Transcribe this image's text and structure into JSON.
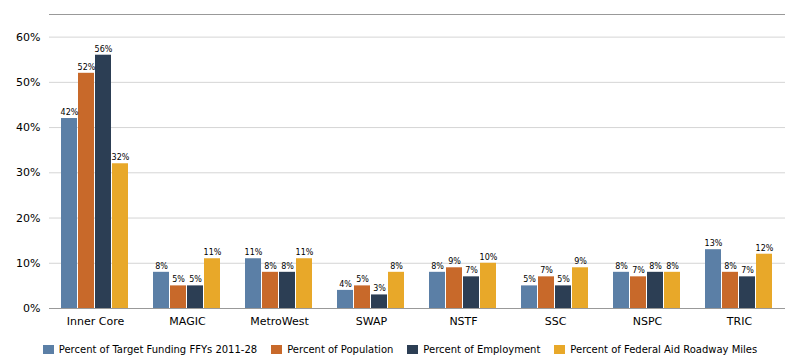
{
  "chart_data": {
    "type": "bar",
    "categories": [
      "Inner Core",
      "MAGIC",
      "MetroWest",
      "SWAP",
      "NSTF",
      "SSC",
      "NSPC",
      "TRIC"
    ],
    "series": [
      {
        "name": "Percent of Target Funding FFYs 2011-28",
        "color": "#5b7fa6",
        "values": [
          42,
          8,
          11,
          4,
          8,
          5,
          8,
          13
        ],
        "value_labels": [
          "42%",
          "8%",
          "11%",
          "4%",
          "8%",
          "5%",
          "8%",
          "13%"
        ]
      },
      {
        "name": "Percent of Population",
        "color": "#c8692a",
        "values": [
          52,
          5,
          8,
          5,
          9,
          7,
          7,
          8
        ],
        "value_labels": [
          "52%",
          "5%",
          "8%",
          "5%",
          "9%",
          "7%",
          "7%",
          "8%"
        ]
      },
      {
        "name": "Percent of Employment",
        "color": "#2c3e54",
        "values": [
          56,
          5,
          8,
          3,
          7,
          5,
          8,
          7
        ],
        "value_labels": [
          "56%",
          "5%",
          "8%",
          "3%",
          "7%",
          "5%",
          "8%",
          "7%"
        ]
      },
      {
        "name": "Percent of Federal Aid Roadway Miles",
        "color": "#e8a829",
        "values": [
          32,
          11,
          11,
          8,
          10,
          9,
          8,
          12
        ],
        "value_labels": [
          "32%",
          "11%",
          "11%",
          "8%",
          "10%",
          "9%",
          "8%",
          "12%"
        ]
      }
    ],
    "ylim": [
      0,
      65
    ],
    "yticks": [
      {
        "value": 0,
        "label": "0%"
      },
      {
        "value": 10,
        "label": "10%"
      },
      {
        "value": 20,
        "label": "20%"
      },
      {
        "value": 30,
        "label": "30%"
      },
      {
        "value": 40,
        "label": "40%"
      },
      {
        "value": 50,
        "label": "50%"
      },
      {
        "value": 60,
        "label": "60%"
      }
    ],
    "grid": true,
    "legend": "bottom",
    "data_labels": true
  }
}
